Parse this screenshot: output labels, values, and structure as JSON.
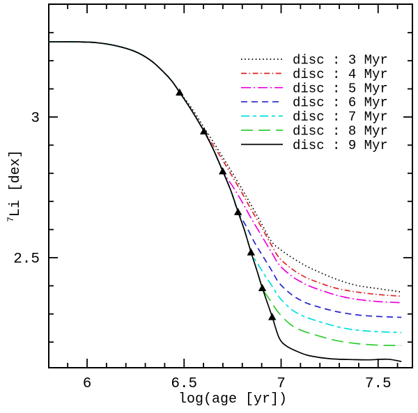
{
  "axes": {
    "x_label": "log(age [yr])",
    "y_label_sup": "7",
    "y_label_main": "Li [dex]"
  },
  "chart_data": {
    "type": "line",
    "title": "",
    "xlabel": "log(age [yr])",
    "ylabel": "⁷Li [dex]",
    "xlim": [
      5.8,
      7.68
    ],
    "ylim": [
      2.11,
      3.4
    ],
    "grid": false,
    "legend_position": "upper right",
    "x_major_ticks": [
      {
        "value": 6.0,
        "label": "6"
      },
      {
        "value": 6.5,
        "label": "6.5"
      },
      {
        "value": 7.0,
        "label": "7"
      },
      {
        "value": 7.5,
        "label": "7.5"
      }
    ],
    "y_major_ticks": [
      {
        "value": 3.0,
        "label": "3"
      },
      {
        "value": 2.5,
        "label": "2.5"
      }
    ],
    "minor_tick_step": 0.1,
    "common_track": [
      [
        5.802,
        3.267
      ],
      [
        5.95,
        3.267
      ],
      [
        6.05,
        3.264
      ],
      [
        6.15,
        3.253
      ],
      [
        6.25,
        3.232
      ],
      [
        6.33,
        3.2
      ],
      [
        6.4,
        3.156
      ],
      [
        6.44,
        3.125
      ],
      [
        6.477,
        3.088
      ],
      [
        6.54,
        3.022
      ],
      [
        6.602,
        2.95
      ],
      [
        6.65,
        2.886
      ],
      [
        6.699,
        2.808
      ],
      [
        6.74,
        2.74
      ],
      [
        6.778,
        2.663
      ],
      [
        6.81,
        2.6
      ],
      [
        6.845,
        2.52
      ],
      [
        6.875,
        2.455
      ],
      [
        6.903,
        2.393
      ],
      [
        6.93,
        2.338
      ],
      [
        6.954,
        2.29
      ]
    ],
    "series": [
      {
        "label": "disc : 3 Myr",
        "disc_lifetime_myr": 3,
        "color": "#000000",
        "dash": "1.6 3.6",
        "depart_log_age": 6.477,
        "tail": [
          [
            6.52,
            3.05
          ],
          [
            6.56,
            3.01
          ],
          [
            6.6,
            2.965
          ],
          [
            6.65,
            2.912
          ],
          [
            6.7,
            2.856
          ],
          [
            6.75,
            2.8
          ],
          [
            6.8,
            2.742
          ],
          [
            6.845,
            2.688
          ],
          [
            6.9,
            2.62
          ],
          [
            6.95,
            2.558
          ],
          [
            7.0,
            2.527
          ],
          [
            7.05,
            2.503
          ],
          [
            7.1,
            2.482
          ],
          [
            7.15,
            2.463
          ],
          [
            7.25,
            2.433
          ],
          [
            7.32,
            2.415
          ],
          [
            7.4,
            2.4
          ],
          [
            7.5,
            2.39
          ],
          [
            7.62,
            2.378
          ]
        ]
      },
      {
        "label": "disc : 4 Myr",
        "disc_lifetime_myr": 4,
        "color": "#dd2222",
        "dash": "8 3.5 1.6 3.5",
        "depart_log_age": 6.602,
        "tail": [
          [
            6.65,
            2.9
          ],
          [
            6.7,
            2.845
          ],
          [
            6.75,
            2.787
          ],
          [
            6.8,
            2.728
          ],
          [
            6.845,
            2.672
          ],
          [
            6.9,
            2.607
          ],
          [
            6.95,
            2.545
          ],
          [
            6.99,
            2.5
          ],
          [
            7.05,
            2.463
          ],
          [
            7.1,
            2.44
          ],
          [
            7.15,
            2.423
          ],
          [
            7.25,
            2.398
          ],
          [
            7.32,
            2.386
          ],
          [
            7.4,
            2.377
          ],
          [
            7.5,
            2.369
          ],
          [
            7.62,
            2.363
          ]
        ]
      },
      {
        "label": "disc : 5 Myr",
        "disc_lifetime_myr": 5,
        "color": "#ee00dd",
        "dash": "14 4 2 4",
        "depart_log_age": 6.699,
        "tail": [
          [
            6.75,
            2.754
          ],
          [
            6.8,
            2.697
          ],
          [
            6.845,
            2.641
          ],
          [
            6.9,
            2.577
          ],
          [
            6.95,
            2.52
          ],
          [
            6.99,
            2.475
          ],
          [
            7.05,
            2.437
          ],
          [
            7.1,
            2.415
          ],
          [
            7.15,
            2.398
          ],
          [
            7.25,
            2.374
          ],
          [
            7.32,
            2.361
          ],
          [
            7.4,
            2.351
          ],
          [
            7.5,
            2.344
          ],
          [
            7.62,
            2.34
          ]
        ]
      },
      {
        "label": "disc : 6 Myr",
        "disc_lifetime_myr": 6,
        "color": "#2222cc",
        "dash": "9 6",
        "depart_log_age": 6.778,
        "tail": [
          [
            6.82,
            2.612
          ],
          [
            6.86,
            2.558
          ],
          [
            6.9,
            2.512
          ],
          [
            6.95,
            2.456
          ],
          [
            6.99,
            2.41
          ],
          [
            7.05,
            2.371
          ],
          [
            7.1,
            2.349
          ],
          [
            7.15,
            2.334
          ],
          [
            7.25,
            2.314
          ],
          [
            7.32,
            2.304
          ],
          [
            7.4,
            2.296
          ],
          [
            7.5,
            2.291
          ],
          [
            7.62,
            2.288
          ]
        ]
      },
      {
        "label": "disc : 7 Myr",
        "disc_lifetime_myr": 7,
        "color": "#00dddd",
        "dash": "12 5 5 5",
        "depart_log_age": 6.845,
        "tail": [
          [
            6.88,
            2.478
          ],
          [
            6.92,
            2.433
          ],
          [
            6.95,
            2.403
          ],
          [
            6.99,
            2.36
          ],
          [
            7.05,
            2.318
          ],
          [
            7.1,
            2.297
          ],
          [
            7.15,
            2.283
          ],
          [
            7.25,
            2.262
          ],
          [
            7.32,
            2.25
          ],
          [
            7.4,
            2.242
          ],
          [
            7.5,
            2.237
          ],
          [
            7.62,
            2.234
          ]
        ]
      },
      {
        "label": "disc : 8 Myr",
        "disc_lifetime_myr": 8,
        "color": "#2ecc2e",
        "dash": "17 8",
        "depart_log_age": 6.903,
        "tail": [
          [
            6.94,
            2.352
          ],
          [
            6.99,
            2.302
          ],
          [
            7.05,
            2.262
          ],
          [
            7.1,
            2.243
          ],
          [
            7.15,
            2.231
          ],
          [
            7.25,
            2.211
          ],
          [
            7.32,
            2.201
          ],
          [
            7.4,
            2.194
          ],
          [
            7.5,
            2.189
          ],
          [
            7.62,
            2.188
          ]
        ]
      },
      {
        "label": "disc : 9 Myr",
        "disc_lifetime_myr": 9,
        "color": "#000000",
        "dash": "",
        "depart_log_age": 6.954,
        "tail": [
          [
            6.99,
            2.215
          ],
          [
            7.03,
            2.185
          ],
          [
            7.1,
            2.162
          ],
          [
            7.15,
            2.151
          ],
          [
            7.25,
            2.141
          ],
          [
            7.35,
            2.138
          ],
          [
            7.45,
            2.137
          ],
          [
            7.55,
            2.139
          ],
          [
            7.62,
            2.131
          ]
        ]
      }
    ],
    "markers": {
      "shape": "triangle-up",
      "color": "#000000",
      "points": [
        [
          6.477,
          3.088
        ],
        [
          6.602,
          2.95
        ],
        [
          6.699,
          2.808
        ],
        [
          6.778,
          2.663
        ],
        [
          6.845,
          2.52
        ],
        [
          6.903,
          2.393
        ],
        [
          6.954,
          2.29
        ]
      ]
    }
  }
}
